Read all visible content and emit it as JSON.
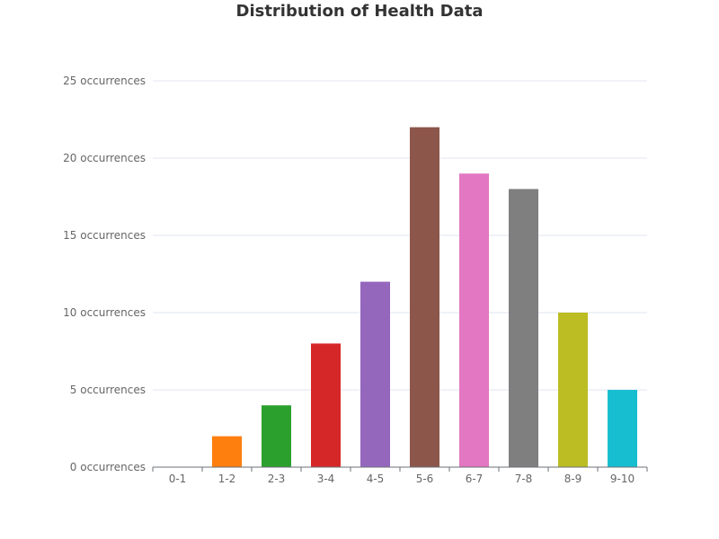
{
  "chart_data": {
    "type": "bar",
    "title": "Distribution of Health Data",
    "xlabel": "",
    "ylabel": "",
    "categories": [
      "0-1",
      "1-2",
      "2-3",
      "3-4",
      "4-5",
      "5-6",
      "6-7",
      "7-8",
      "8-9",
      "9-10"
    ],
    "values": [
      0,
      2,
      4,
      8,
      12,
      22,
      19,
      18,
      10,
      5
    ],
    "colors": [
      "#1f77b4",
      "#ff7f0e",
      "#2ca02c",
      "#d62728",
      "#9467bd",
      "#8c564b",
      "#e377c2",
      "#7f7f7f",
      "#bcbd22",
      "#17becf"
    ],
    "ylim": [
      0,
      25
    ],
    "yticks": [
      0,
      5,
      10,
      15,
      20,
      25
    ],
    "ytick_suffix": " occurrences",
    "grid": true,
    "legend": "none"
  }
}
